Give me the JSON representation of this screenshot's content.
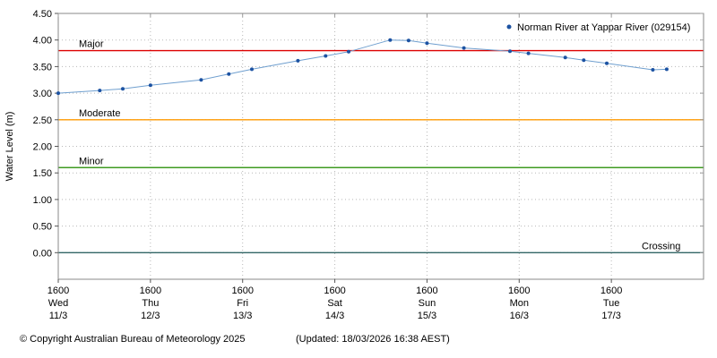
{
  "chart_data": {
    "type": "line",
    "title": "",
    "ylabel": "Water Level (m)",
    "ylim": [
      -0.5,
      4.5
    ],
    "xlim_days": [
      0,
      7
    ],
    "grid": true,
    "legend_position": "top-right",
    "y_ticks": [
      {
        "value": 0.0,
        "label": "0.00"
      },
      {
        "value": 0.5,
        "label": "0.50"
      },
      {
        "value": 1.0,
        "label": "1.00"
      },
      {
        "value": 1.5,
        "label": "1.50"
      },
      {
        "value": 2.0,
        "label": "2.00"
      },
      {
        "value": 2.5,
        "label": "2.50"
      },
      {
        "value": 3.0,
        "label": "3.00"
      },
      {
        "value": 3.5,
        "label": "3.50"
      },
      {
        "value": 4.0,
        "label": "4.00"
      },
      {
        "value": 4.5,
        "label": "4.50"
      }
    ],
    "x_ticks": [
      {
        "t": 0,
        "time": "1600",
        "day": "Wed",
        "date": "11/3"
      },
      {
        "t": 1,
        "time": "1600",
        "day": "Thu",
        "date": "12/3"
      },
      {
        "t": 2,
        "time": "1600",
        "day": "Fri",
        "date": "13/3"
      },
      {
        "t": 3,
        "time": "1600",
        "day": "Sat",
        "date": "14/3"
      },
      {
        "t": 4,
        "time": "1600",
        "day": "Sun",
        "date": "15/3"
      },
      {
        "t": 5,
        "time": "1600",
        "day": "Mon",
        "date": "16/3"
      },
      {
        "t": 6,
        "time": "1600",
        "day": "Tue",
        "date": "17/3"
      }
    ],
    "series": [
      {
        "name": "Norman River at Yappar River (029154)",
        "line_color": "#6f9fcf",
        "marker_color": "#1c52a2",
        "points": [
          [
            0.0,
            3.0
          ],
          [
            0.45,
            3.05
          ],
          [
            0.7,
            3.08
          ],
          [
            1.0,
            3.15
          ],
          [
            1.55,
            3.25
          ],
          [
            1.85,
            3.36
          ],
          [
            2.1,
            3.45
          ],
          [
            2.6,
            3.61
          ],
          [
            2.9,
            3.7
          ],
          [
            3.15,
            3.78
          ],
          [
            3.6,
            4.0
          ],
          [
            3.8,
            3.99
          ],
          [
            4.0,
            3.94
          ],
          [
            4.4,
            3.85
          ],
          [
            4.9,
            3.79
          ],
          [
            5.1,
            3.75
          ],
          [
            5.5,
            3.67
          ],
          [
            5.7,
            3.62
          ],
          [
            5.95,
            3.56
          ],
          [
            6.45,
            3.44
          ],
          [
            6.6,
            3.45
          ]
        ]
      }
    ],
    "reference_lines": [
      {
        "label": "Major",
        "value": 3.8,
        "color": "#dd0000",
        "label_side": "left"
      },
      {
        "label": "Moderate",
        "value": 2.5,
        "color": "#ff9900",
        "label_side": "left"
      },
      {
        "label": "Minor",
        "value": 1.6,
        "color": "#3f9b22",
        "label_side": "left"
      },
      {
        "label": "Crossing",
        "value": 0.0,
        "color": "#336666",
        "label_side": "right"
      }
    ],
    "colors": {
      "grid": "#b8b8b8",
      "frame": "#8a8a8a",
      "text": "#000000"
    }
  },
  "footer": {
    "copyright": "© Copyright Australian Bureau of Meteorology 2025",
    "updated": "(Updated: 18/03/2026 16:38 AEST)"
  }
}
